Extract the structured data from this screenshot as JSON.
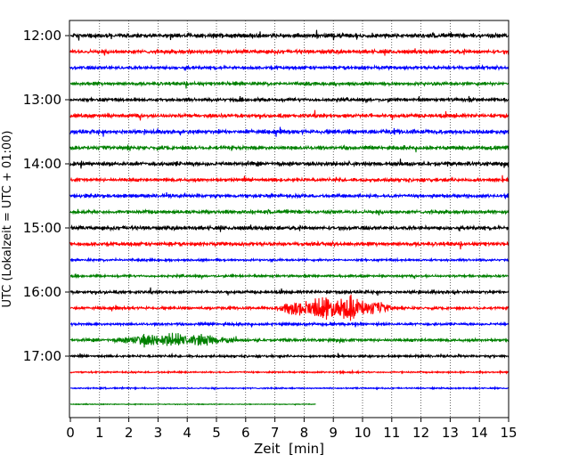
{
  "chart_data": {
    "type": "line",
    "title": "",
    "xlabel": "Zeit  [min]",
    "ylabel": "UTC (Lokalzeit = UTC + 01:00)",
    "xlim": [
      0,
      15
    ],
    "xticks": [
      "0",
      "1",
      "2",
      "3",
      "4",
      "5",
      "6",
      "7",
      "8",
      "9",
      "10",
      "11",
      "12",
      "13",
      "14",
      "15"
    ],
    "yticks": [
      "12:00",
      "13:00",
      "14:00",
      "15:00",
      "16:00",
      "17:00"
    ],
    "grid": "vertical dotted",
    "colors": [
      "#000000",
      "#ff0000",
      "#0000ff",
      "#008000"
    ],
    "traces": [
      {
        "start": "12:00",
        "color": "#000000",
        "amp": 0.22,
        "end_min": 15
      },
      {
        "start": "12:15",
        "color": "#ff0000",
        "amp": 0.2,
        "end_min": 15
      },
      {
        "start": "12:30",
        "color": "#0000ff",
        "amp": 0.18,
        "end_min": 15
      },
      {
        "start": "12:45",
        "color": "#008000",
        "amp": 0.18,
        "end_min": 15
      },
      {
        "start": "13:00",
        "color": "#000000",
        "amp": 0.18,
        "end_min": 15
      },
      {
        "start": "13:15",
        "color": "#ff0000",
        "amp": 0.2,
        "end_min": 15
      },
      {
        "start": "13:30",
        "color": "#0000ff",
        "amp": 0.22,
        "end_min": 15
      },
      {
        "start": "13:45",
        "color": "#008000",
        "amp": 0.2,
        "end_min": 15
      },
      {
        "start": "14:00",
        "color": "#000000",
        "amp": 0.22,
        "end_min": 15
      },
      {
        "start": "14:15",
        "color": "#ff0000",
        "amp": 0.18,
        "end_min": 15
      },
      {
        "start": "14:30",
        "color": "#0000ff",
        "amp": 0.18,
        "end_min": 15
      },
      {
        "start": "14:45",
        "color": "#008000",
        "amp": 0.18,
        "end_min": 15
      },
      {
        "start": "15:00",
        "color": "#000000",
        "amp": 0.2,
        "end_min": 15
      },
      {
        "start": "15:15",
        "color": "#ff0000",
        "amp": 0.2,
        "end_min": 15
      },
      {
        "start": "15:30",
        "color": "#0000ff",
        "amp": 0.12,
        "end_min": 15
      },
      {
        "start": "15:45",
        "color": "#008000",
        "amp": 0.12,
        "end_min": 15
      },
      {
        "start": "16:00",
        "color": "#000000",
        "amp": 0.16,
        "end_min": 15
      },
      {
        "start": "16:15",
        "color": "#ff0000",
        "amp": 0.14,
        "end_min": 15,
        "event": {
          "from": 6.9,
          "to": 11.8,
          "peak": 1.5
        }
      },
      {
        "start": "16:30",
        "color": "#0000ff",
        "amp": 0.14,
        "end_min": 15
      },
      {
        "start": "16:45",
        "color": "#008000",
        "amp": 0.16,
        "end_min": 15,
        "event": {
          "from": 1.3,
          "to": 6.5,
          "peak": 0.9
        }
      },
      {
        "start": "17:00",
        "color": "#000000",
        "amp": 0.12,
        "end_min": 15
      },
      {
        "start": "17:15",
        "color": "#ff0000",
        "amp": 0.08,
        "end_min": 15
      },
      {
        "start": "17:30",
        "color": "#0000ff",
        "amp": 0.07,
        "end_min": 15
      },
      {
        "start": "17:45",
        "color": "#008000",
        "amp": 0.04,
        "end_min": 8.4
      }
    ]
  }
}
